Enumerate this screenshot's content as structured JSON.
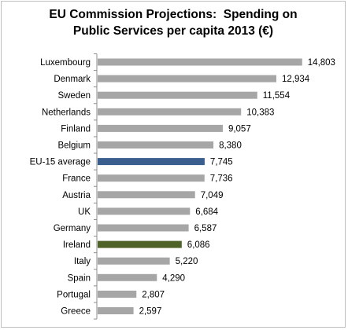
{
  "chart_data": {
    "type": "bar",
    "orientation": "horizontal",
    "title_lines": [
      "EU Commission Projections:  Spending on",
      "Public Services per capita 2013 (€)"
    ],
    "categories": [
      "Luxembourg",
      "Denmark",
      "Sweden",
      "Netherlands",
      "Finland",
      "Belgium",
      "EU-15 average",
      "France",
      "Austria",
      "UK",
      "Germany",
      "Ireland",
      "Italy",
      "Spain",
      "Portugal",
      "Greece"
    ],
    "values": [
      14803,
      12934,
      11554,
      10383,
      9057,
      8380,
      7745,
      7736,
      7049,
      6684,
      6587,
      6086,
      5220,
      4290,
      2807,
      2597
    ],
    "value_labels": [
      "14,803",
      "12,934",
      "11,554",
      "10,383",
      "9,057",
      "8,380",
      "7,745",
      "7,736",
      "7,049",
      "6,684",
      "6,587",
      "6,086",
      "5,220",
      "4,290",
      "2,807",
      "2,597"
    ],
    "xlim": [
      0,
      16000
    ],
    "grid": false,
    "legend": "none",
    "colors": {
      "default": "#a6a6a6",
      "highlight": {
        "EU-15 average": "#3a5f8f",
        "Ireland": "#4f6228"
      }
    }
  }
}
